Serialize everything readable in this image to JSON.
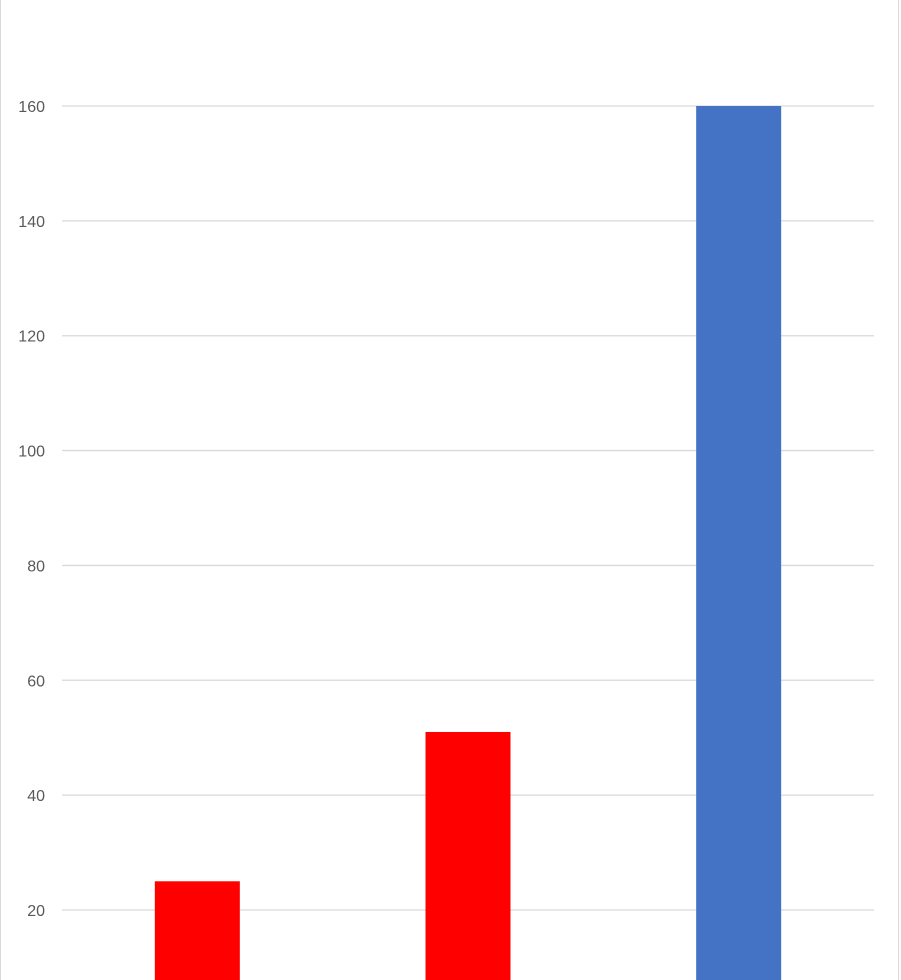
{
  "chart_data": {
    "type": "bar",
    "title": "",
    "xlabel": "",
    "ylabel": "",
    "categories": [
      "",
      "",
      ""
    ],
    "values": [
      25,
      51,
      160
    ],
    "bar_colors": [
      "#ff0000",
      "#ff0000",
      "#4472c4"
    ],
    "yticks": [
      20,
      40,
      60,
      80,
      100,
      120,
      140,
      160
    ],
    "ylim": [
      5,
      178
    ],
    "grid": true,
    "legend": "none",
    "gridline_color": "#d9d9d9",
    "tick_label_color": "#595959"
  }
}
